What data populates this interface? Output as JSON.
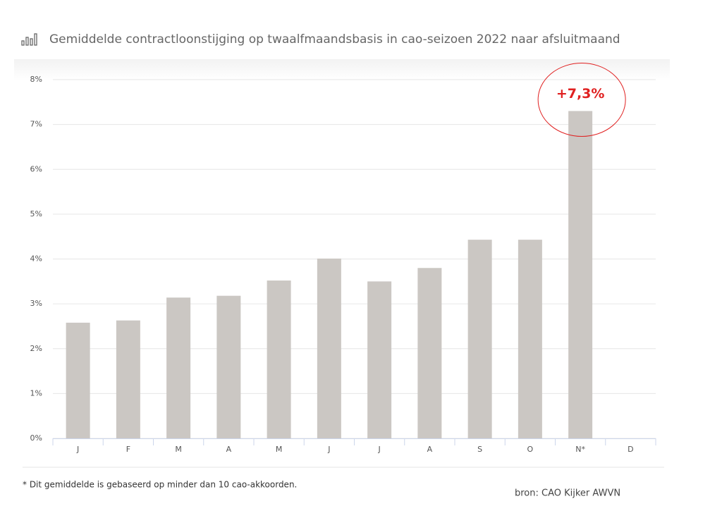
{
  "chart_data": {
    "type": "bar",
    "title": "Gemiddelde contractloonstijging op twaalfmaandsbasis in cao-seizoen 2022 naar afsluitmaand",
    "categories": [
      "J",
      "F",
      "M",
      "A",
      "M",
      "J",
      "J",
      "A",
      "S",
      "O",
      "N*",
      "D"
    ],
    "values": [
      2.58,
      2.63,
      3.14,
      3.18,
      3.52,
      4.01,
      3.5,
      3.8,
      4.43,
      4.43,
      7.3,
      null
    ],
    "color": "#cbc7c3",
    "ylim": [
      0,
      8
    ],
    "yticks": [
      {
        "value": 0,
        "label": "0%"
      },
      {
        "value": 1,
        "label": "1%"
      },
      {
        "value": 2,
        "label": "2%"
      },
      {
        "value": 3,
        "label": "3%"
      },
      {
        "value": 4,
        "label": "4%"
      },
      {
        "value": 5,
        "label": "5%"
      },
      {
        "value": 6,
        "label": "6%"
      },
      {
        "value": 7,
        "label": "7%"
      },
      {
        "value": 8,
        "label": "8%"
      }
    ],
    "grid": true,
    "annotation": "+7,3%",
    "footnote": "* Dit gemiddelde is gebaseerd op minder dan 10 cao-akkoorden.",
    "source": "bron: CAO Kijker AWVN"
  }
}
